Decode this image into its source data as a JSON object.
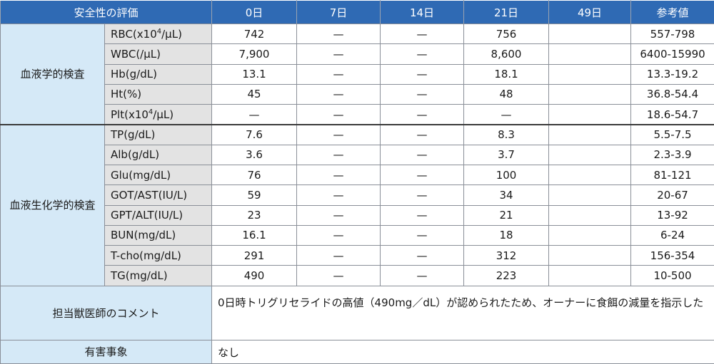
{
  "table": {
    "headers": [
      "安全性の評価",
      "0日",
      "7日",
      "14日",
      "21日",
      "49日",
      "参考値"
    ],
    "groups": [
      {
        "category": "血液学的検査",
        "rows": [
          {
            "item": "RBC(x10⁴/μL)",
            "d0": "742",
            "d7": "—",
            "d14": "—",
            "d21": "756",
            "d49": "",
            "ref": "557-798"
          },
          {
            "item": "WBC(/μL)",
            "d0": "7,900",
            "d7": "—",
            "d14": "—",
            "d21": "8,600",
            "d49": "",
            "ref": "6400-15990"
          },
          {
            "item": "Hb(g/dL)",
            "d0": "13.1",
            "d7": "—",
            "d14": "—",
            "d21": "18.1",
            "d49": "",
            "ref": "13.3-19.2"
          },
          {
            "item": "Ht(%)",
            "d0": "45",
            "d7": "—",
            "d14": "—",
            "d21": "48",
            "d49": "",
            "ref": "36.8-54.4"
          },
          {
            "item": "Plt(x10⁴/μL)",
            "d0": "—",
            "d7": "—",
            "d14": "—",
            "d21": "—",
            "d49": "",
            "ref": "18.6-54.7"
          }
        ]
      },
      {
        "category": "血液生化学的検査",
        "rows": [
          {
            "item": "TP(g/dL)",
            "d0": "7.6",
            "d7": "—",
            "d14": "—",
            "d21": "8.3",
            "d49": "",
            "ref": "5.5-7.5"
          },
          {
            "item": "Alb(g/dL)",
            "d0": "3.6",
            "d7": "—",
            "d14": "—",
            "d21": "3.7",
            "d49": "",
            "ref": "2.3-3.9"
          },
          {
            "item": "Glu(mg/dL)",
            "d0": "76",
            "d7": "—",
            "d14": "—",
            "d21": "100",
            "d49": "",
            "ref": "81-121"
          },
          {
            "item": "GOT/AST(IU/L)",
            "d0": "59",
            "d7": "—",
            "d14": "—",
            "d21": "34",
            "d49": "",
            "ref": "20-67"
          },
          {
            "item": "GPT/ALT(IU/L)",
            "d0": "23",
            "d7": "—",
            "d14": "—",
            "d21": "21",
            "d49": "",
            "ref": "13-92"
          },
          {
            "item": "BUN(mg/dL)",
            "d0": "16.1",
            "d7": "—",
            "d14": "—",
            "d21": "18",
            "d49": "",
            "ref": "6-24"
          },
          {
            "item": "T-cho(mg/dL)",
            "d0": "291",
            "d7": "—",
            "d14": "—",
            "d21": "312",
            "d49": "",
            "ref": "156-354"
          },
          {
            "item": "TG(mg/dL)",
            "d0": "490",
            "d7": "—",
            "d14": "—",
            "d21": "223",
            "d49": "",
            "ref": "10-500"
          }
        ]
      }
    ],
    "comment": {
      "label": "担当獣医師のコメント",
      "text": "0日時トリグリセライドの高値（490mg／dL）が認められたため、オーナーに食餌の減量を指示した"
    },
    "adverse": {
      "label": "有害事象",
      "text": "なし"
    }
  },
  "colors": {
    "header_bg": "#2f6ab4",
    "category_bg": "#d5e9f7",
    "item_bg": "#e3e3e3"
  }
}
